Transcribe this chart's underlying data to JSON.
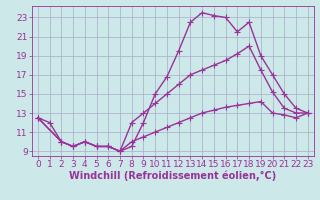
{
  "xlabel": "Windchill (Refroidissement éolien,°C)",
  "background_color": "#cce8e8",
  "grid_color": "#aaaacc",
  "line_color": "#993399",
  "x_ticks": [
    0,
    1,
    2,
    3,
    4,
    5,
    6,
    7,
    8,
    9,
    10,
    11,
    12,
    13,
    14,
    15,
    16,
    17,
    18,
    19,
    20,
    21,
    22,
    23
  ],
  "y_ticks": [
    9,
    11,
    13,
    15,
    17,
    19,
    21,
    23
  ],
  "ylim": [
    8.5,
    24.2
  ],
  "xlim": [
    -0.5,
    23.5
  ],
  "curve1_x": [
    0,
    1,
    2,
    3,
    4,
    5,
    6,
    7,
    8,
    9,
    10,
    11,
    12,
    13,
    14,
    15,
    16,
    17,
    18,
    19,
    20,
    21,
    22,
    23
  ],
  "curve1_y": [
    12.5,
    12.0,
    10.0,
    9.5,
    10.0,
    9.5,
    9.5,
    9.0,
    9.5,
    12.0,
    15.0,
    16.8,
    19.5,
    22.5,
    23.5,
    23.2,
    23.0,
    21.5,
    22.5,
    19.0,
    17.0,
    15.0,
    13.5,
    13.0
  ],
  "curve2_x": [
    0,
    2,
    3,
    4,
    5,
    6,
    7,
    8,
    9,
    10,
    11,
    12,
    13,
    14,
    15,
    16,
    17,
    18,
    19,
    20,
    21,
    22,
    23
  ],
  "curve2_y": [
    12.5,
    10.0,
    9.5,
    10.0,
    9.5,
    9.5,
    9.0,
    12.0,
    13.0,
    14.0,
    15.0,
    16.0,
    17.0,
    17.5,
    18.0,
    18.5,
    19.2,
    20.0,
    17.5,
    15.2,
    13.5,
    13.0,
    13.0
  ],
  "curve3_x": [
    0,
    2,
    3,
    4,
    5,
    6,
    7,
    8,
    9,
    10,
    11,
    12,
    13,
    14,
    15,
    16,
    17,
    18,
    19,
    20,
    21,
    22,
    23
  ],
  "curve3_y": [
    12.5,
    10.0,
    9.5,
    10.0,
    9.5,
    9.5,
    9.0,
    10.0,
    10.5,
    11.0,
    11.5,
    12.0,
    12.5,
    13.0,
    13.3,
    13.6,
    13.8,
    14.0,
    14.2,
    13.0,
    12.8,
    12.5,
    13.0
  ],
  "markersize": 2.5,
  "linewidth": 1.0,
  "xlabel_fontsize": 7,
  "tick_fontsize": 6.5,
  "tick_color": "#993399",
  "axis_color": "#993399"
}
